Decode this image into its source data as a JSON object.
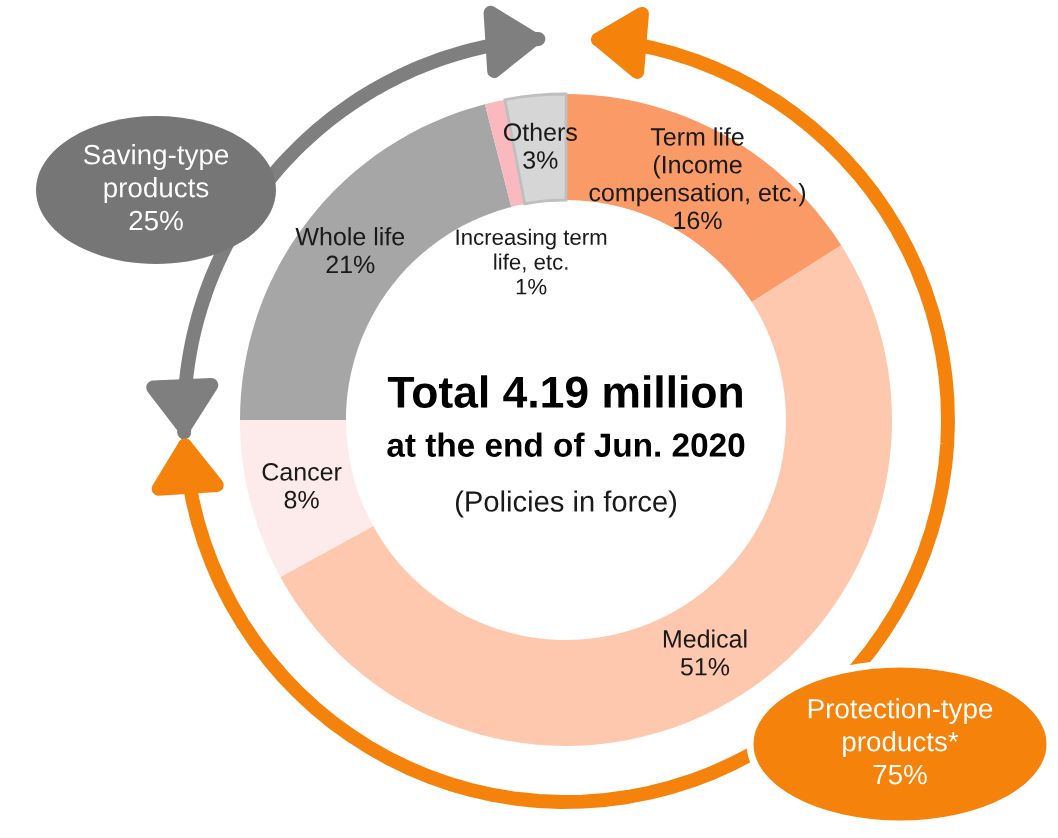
{
  "chart_data": {
    "type": "donut",
    "title": "Total 4.19 million",
    "subtitle": "at the end of Jun. 2020",
    "categories": [
      "Term life\n(Income\ncompensation, etc.)",
      "Medical",
      "Cancer",
      "Whole life",
      "Increasing term\nlife, etc.",
      "Others"
    ],
    "values": [
      16,
      51,
      8,
      21,
      1,
      3
    ],
    "value_labels": [
      "16%",
      "51%",
      "8%",
      "21%",
      "1%",
      "3%"
    ],
    "colors": [
      "#fa9a66",
      "#fdc8ad",
      "#fdeaea",
      "#a6a6a6",
      "#f9b9be",
      "#d6d6d6"
    ],
    "annotations": [
      "(Policies in force)",
      "Saving-type\nproducts\n25%",
      "Protection-type\nproducts*\n75%"
    ]
  }
}
